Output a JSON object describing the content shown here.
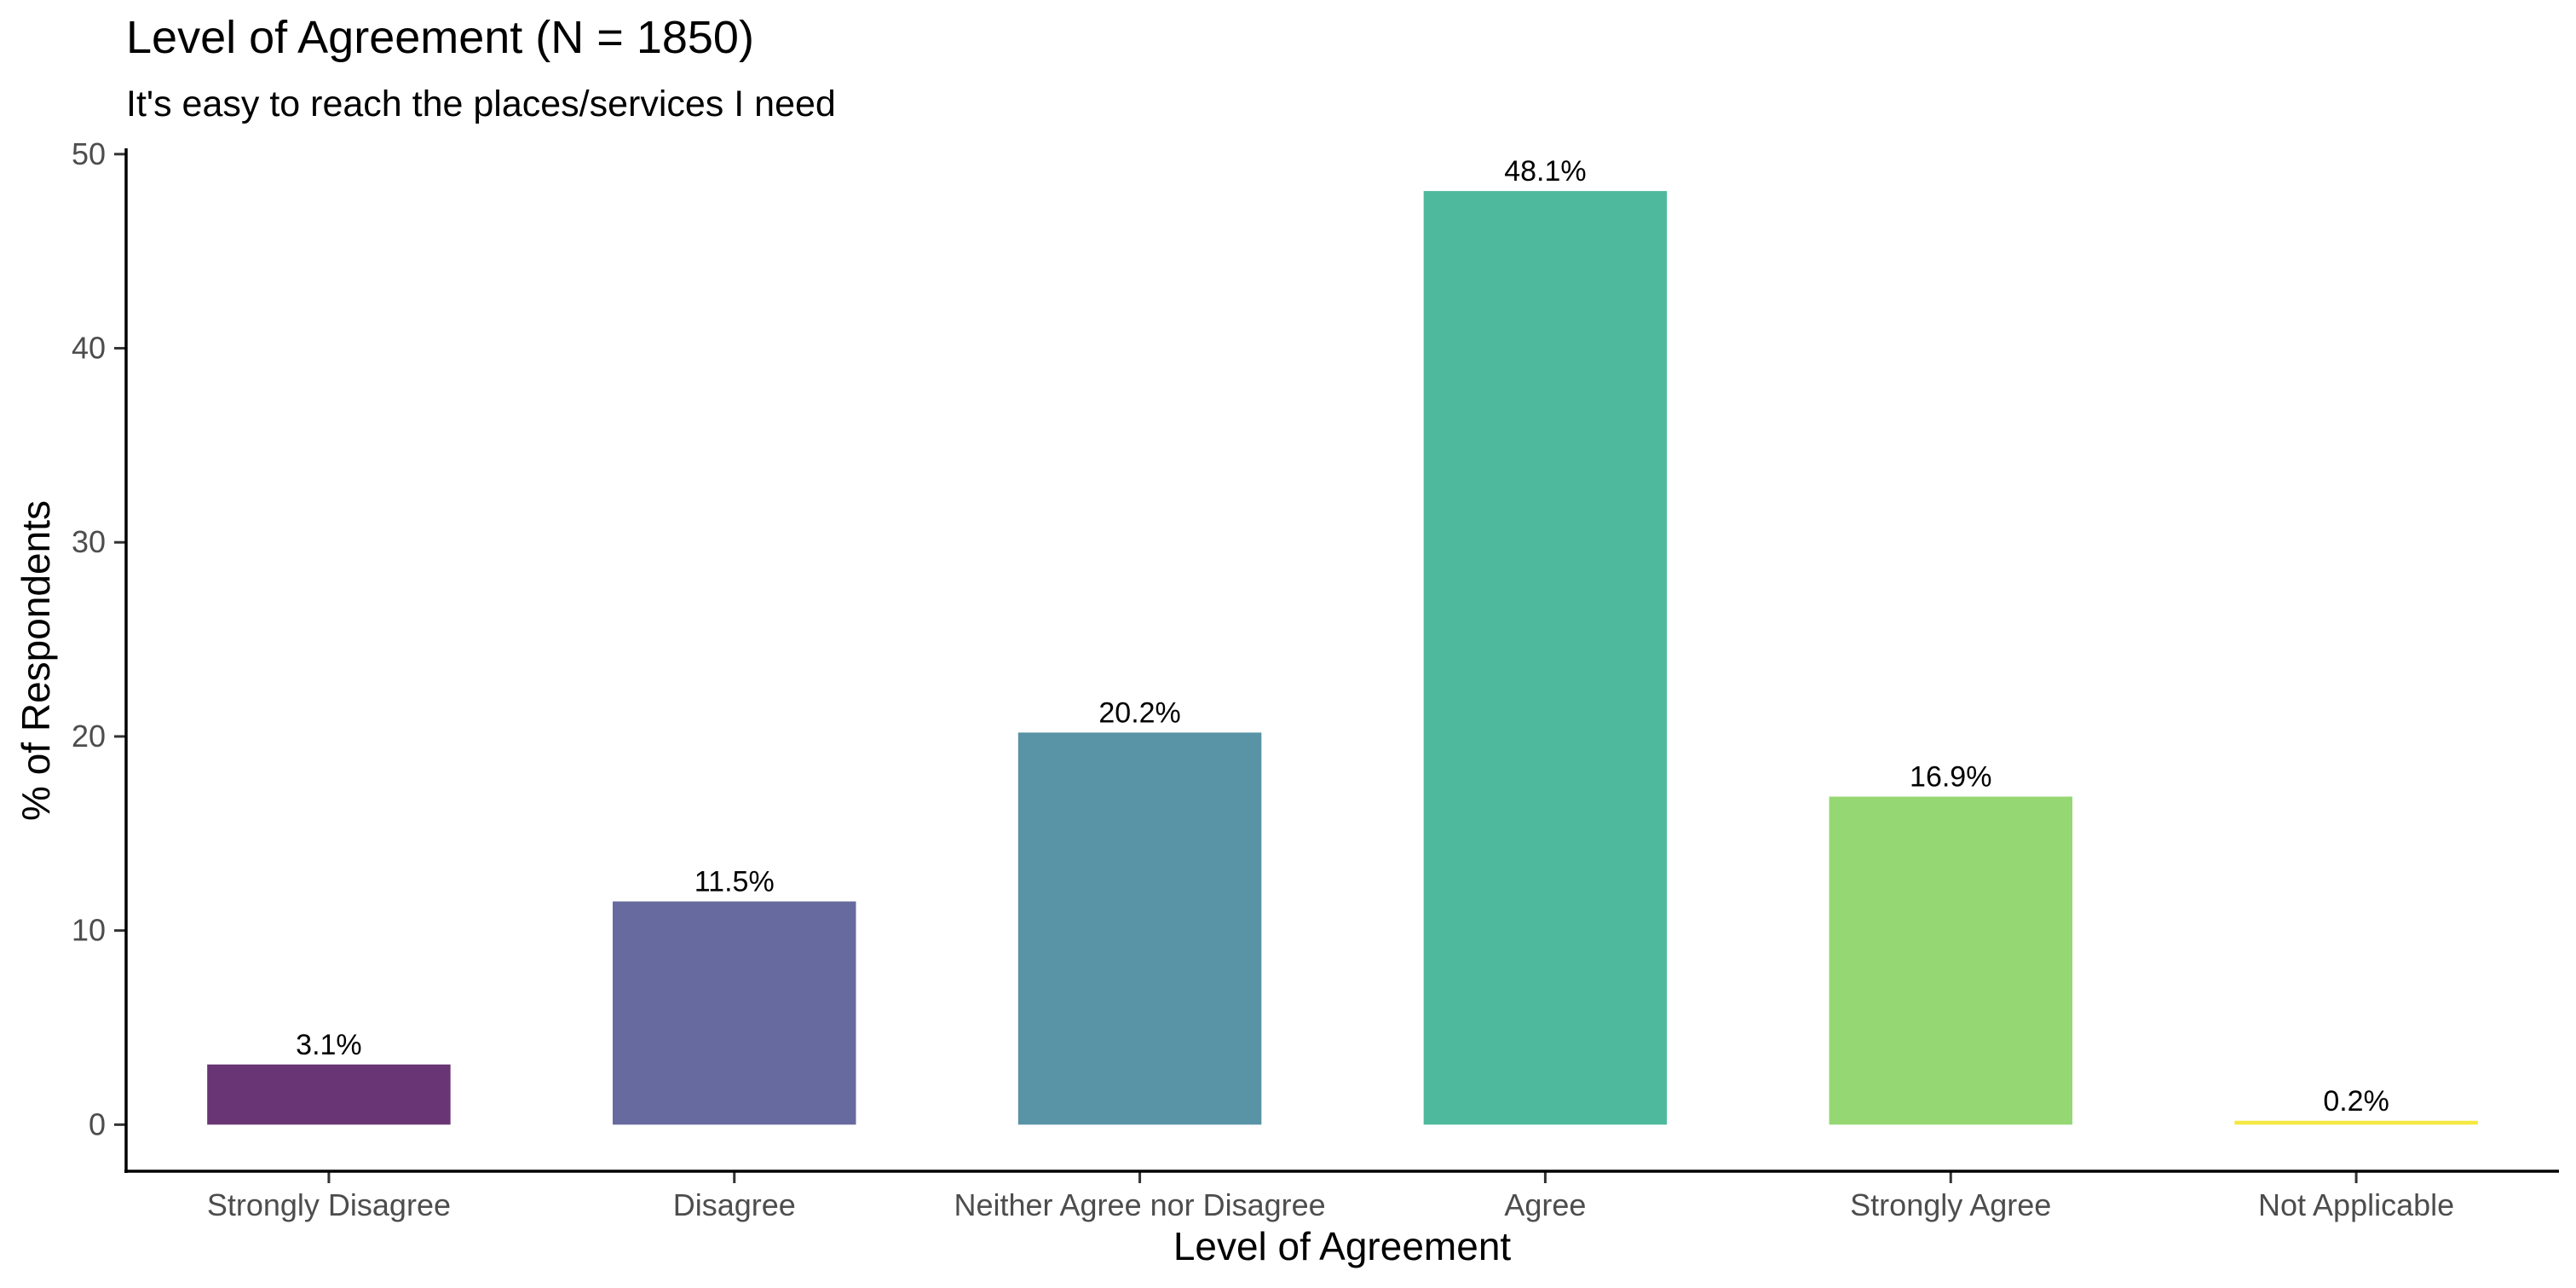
{
  "chart_data": {
    "type": "bar",
    "title": "Level of Agreement (N = 1850)",
    "subtitle": "It's easy to reach the places/services I need",
    "xlabel": "Level of Agreement",
    "ylabel": "% of Respondents",
    "categories": [
      "Strongly Disagree",
      "Disagree",
      "Neither Agree nor Disagree",
      "Agree",
      "Strongly Agree",
      "Not Applicable"
    ],
    "values": [
      3.1,
      11.5,
      20.2,
      48.1,
      16.9,
      0.2
    ],
    "data_labels": [
      "3.1%",
      "11.5%",
      "20.2%",
      "48.1%",
      "16.9%",
      "0.2%"
    ],
    "colors": [
      "#6a3574",
      "#676a9e",
      "#5893a6",
      "#4fb99d",
      "#95d873",
      "#f4e842"
    ],
    "y_ticks": [
      0,
      10,
      20,
      30,
      40,
      50
    ],
    "ylim": [
      -2.4,
      50.3
    ],
    "grid": false,
    "legend": "none"
  }
}
